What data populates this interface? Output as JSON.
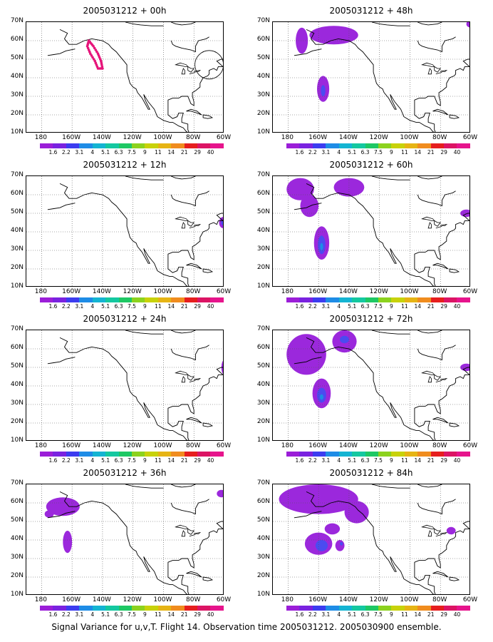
{
  "panels": [
    {
      "title": "2005031212 + 00h",
      "col": 0,
      "row": 0,
      "blobs": [],
      "ring": true
    },
    {
      "title": "2005031212 + 48h",
      "col": 1,
      "row": 0,
      "blobs": [
        {
          "lon": -150,
          "lat": 63,
          "rx": 16,
          "ry": 5,
          "level": 0
        },
        {
          "lon": -171,
          "lat": 60,
          "rx": 4,
          "ry": 7,
          "level": 0
        },
        {
          "lon": -157,
          "lat": 34,
          "rx": 4,
          "ry": 7,
          "level": 0
        },
        {
          "lon": -157,
          "lat": 33,
          "rx": 1.5,
          "ry": 3,
          "level": 1
        },
        {
          "lon": -60,
          "lat": 69,
          "rx": 3,
          "ry": 2,
          "level": 0
        }
      ]
    },
    {
      "title": "2005031212 + 12h",
      "col": 0,
      "row": 1,
      "blobs": [
        {
          "lon": -61,
          "lat": 45,
          "rx": 2.5,
          "ry": 3,
          "level": 0
        },
        {
          "lon": -61,
          "lat": 45,
          "rx": 1.2,
          "ry": 1.5,
          "level": 1
        }
      ]
    },
    {
      "title": "2005031212 + 60h",
      "col": 1,
      "row": 1,
      "blobs": [
        {
          "lon": -172,
          "lat": 63,
          "rx": 9,
          "ry": 6,
          "level": 0
        },
        {
          "lon": -166,
          "lat": 54,
          "rx": 6,
          "ry": 6,
          "level": 0
        },
        {
          "lon": -140,
          "lat": 64,
          "rx": 10,
          "ry": 5,
          "level": 0
        },
        {
          "lon": -158,
          "lat": 34,
          "rx": 5,
          "ry": 9,
          "level": 0
        },
        {
          "lon": -158,
          "lat": 33,
          "rx": 2.5,
          "ry": 5,
          "level": 1
        },
        {
          "lon": -158,
          "lat": 32,
          "rx": 1,
          "ry": 2,
          "level": 2
        },
        {
          "lon": -63,
          "lat": 50,
          "rx": 4,
          "ry": 2,
          "level": 0
        }
      ]
    },
    {
      "title": "2005031212 + 24h",
      "col": 0,
      "row": 2,
      "blobs": [
        {
          "lon": -60,
          "lat": 50,
          "rx": 2,
          "ry": 4,
          "level": 0
        },
        {
          "lon": -60,
          "lat": 50,
          "rx": 1,
          "ry": 2,
          "level": 1
        }
      ]
    },
    {
      "title": "2005031212 + 72h",
      "col": 1,
      "row": 2,
      "blobs": [
        {
          "lon": -168,
          "lat": 57,
          "rx": 13,
          "ry": 11,
          "level": 0
        },
        {
          "lon": -143,
          "lat": 64,
          "rx": 8,
          "ry": 6,
          "level": 0
        },
        {
          "lon": -143,
          "lat": 65,
          "rx": 3,
          "ry": 2,
          "level": 1
        },
        {
          "lon": -158,
          "lat": 36,
          "rx": 6,
          "ry": 8,
          "level": 0
        },
        {
          "lon": -158,
          "lat": 35,
          "rx": 3,
          "ry": 4,
          "level": 1
        },
        {
          "lon": -158,
          "lat": 34,
          "rx": 1.2,
          "ry": 1.5,
          "level": 2
        },
        {
          "lon": -63,
          "lat": 50,
          "rx": 4,
          "ry": 2,
          "level": 0
        }
      ]
    },
    {
      "title": "2005031212 + 36h",
      "col": 0,
      "row": 3,
      "blobs": [
        {
          "lon": -166,
          "lat": 58,
          "rx": 11,
          "ry": 5,
          "level": 0
        },
        {
          "lon": -175,
          "lat": 54,
          "rx": 3,
          "ry": 2,
          "level": 0
        },
        {
          "lon": -163,
          "lat": 39,
          "rx": 3,
          "ry": 6,
          "level": 0
        },
        {
          "lon": -62,
          "lat": 65,
          "rx": 3,
          "ry": 2,
          "level": 0
        }
      ]
    },
    {
      "title": "2005031212 + 84h",
      "col": 1,
      "row": 3,
      "blobs": [
        {
          "lon": -160,
          "lat": 62,
          "rx": 26,
          "ry": 8,
          "level": 0
        },
        {
          "lon": -135,
          "lat": 55,
          "rx": 8,
          "ry": 6,
          "level": 0
        },
        {
          "lon": -160,
          "lat": 38,
          "rx": 9,
          "ry": 6,
          "level": 0
        },
        {
          "lon": -158,
          "lat": 37,
          "rx": 4,
          "ry": 3,
          "level": 1
        },
        {
          "lon": -146,
          "lat": 37,
          "rx": 3,
          "ry": 3,
          "level": 0
        },
        {
          "lon": -145,
          "lat": 38,
          "rx": 1,
          "ry": 1,
          "level": 1
        },
        {
          "lon": -151,
          "lat": 46,
          "rx": 5,
          "ry": 3,
          "level": 0
        },
        {
          "lon": -73,
          "lat": 45,
          "rx": 3,
          "ry": 2,
          "level": 0
        }
      ]
    }
  ],
  "lat_labels": [
    "70N",
    "60N",
    "50N",
    "40N",
    "30N",
    "20N",
    "10N"
  ],
  "lon_labels": [
    "180",
    "160W",
    "140W",
    "120W",
    "100W",
    "80W",
    "60W"
  ],
  "colorbar": {
    "labels": [
      "1.6",
      "2.2",
      "3.1",
      "4",
      "5.1",
      "6.3",
      "7.5",
      "9",
      "11",
      "14",
      "21",
      "29",
      "40"
    ],
    "colors": [
      "#9b1ed8",
      "#7a22e0",
      "#3c3cf0",
      "#1e8ce6",
      "#14b4d2",
      "#14c8a0",
      "#1ec864",
      "#8cd21e",
      "#c8d20a",
      "#e6b414",
      "#f08c1e",
      "#e61e1e",
      "#dc1464",
      "#e6148c"
    ]
  },
  "level_colors": [
    "#9b28dc",
    "#4b4bf0",
    "#1e8ce6"
  ],
  "dots_color": "#e6147a",
  "caption": "Signal Variance for u,v,T. Flight 14. Observation time 2005031212. 2005030900 ensemble."
}
